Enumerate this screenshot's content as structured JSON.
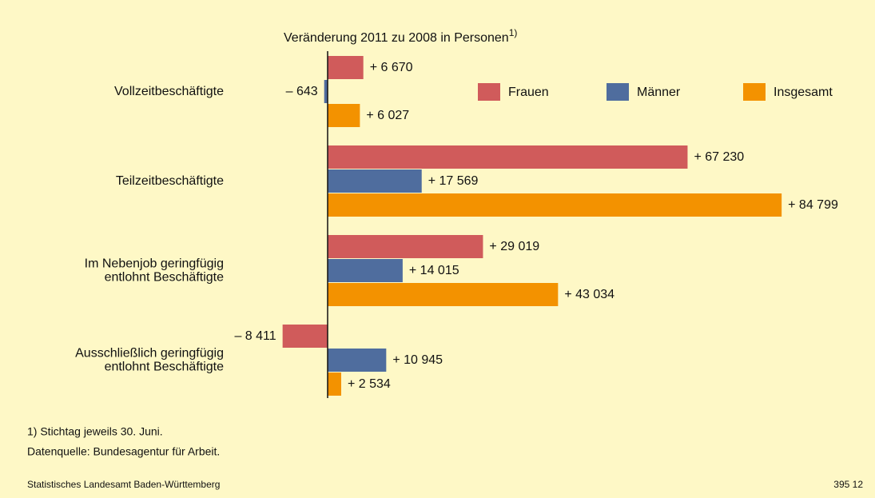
{
  "chart_data": {
    "type": "bar",
    "orientation": "horizontal",
    "title": "Veränderung 2011 zu 2008 in Personen",
    "title_note": "1)",
    "categories": [
      "Vollzeitbeschäftigte",
      "Teilzeitbeschäftigte",
      "Im Nebenjob geringfügig\nentlohnt Beschäftigte",
      "Ausschließlich geringfügig\nentlohnt Beschäftigte"
    ],
    "series": [
      {
        "name": "Frauen",
        "color": "#d05b5b",
        "values": [
          6670,
          67230,
          29019,
          -8411
        ],
        "value_labels": [
          "+ 6 670",
          "+ 67 230",
          "+ 29 019",
          "– 8 411"
        ]
      },
      {
        "name": "Männer",
        "color": "#4f6d9e",
        "values": [
          -643,
          17569,
          14015,
          10945
        ],
        "value_labels": [
          "– 643",
          "+ 17 569",
          "+ 14 015",
          "+ 10 945"
        ]
      },
      {
        "name": "Insgesamt",
        "color": "#f39200",
        "values": [
          6027,
          84799,
          43034,
          2534
        ],
        "value_labels": [
          "+ 6 027",
          "+ 84 799",
          "+ 43 034",
          "+ 2 534"
        ]
      }
    ],
    "xlim": [
      -20000,
      100000
    ],
    "legend": "top-right",
    "footnotes": [
      "1) Stichtag jeweils 30. Juni.",
      "Datenquelle: Bundesagentur für Arbeit."
    ],
    "source": "Statistisches Landesamt Baden-Württemberg",
    "code": "395 12"
  }
}
